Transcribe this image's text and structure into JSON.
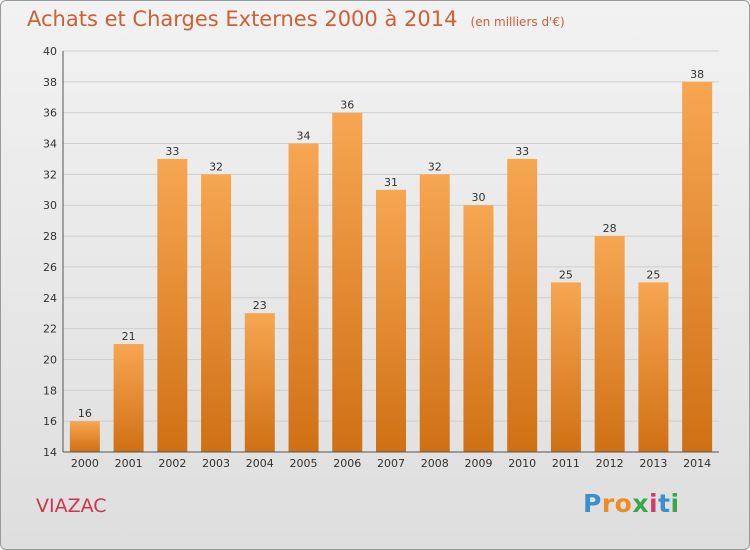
{
  "header": {
    "title": "Achats et Charges Externes 2000 à 2014",
    "unit": "(en milliers d'€)"
  },
  "commune": "VIAZAC",
  "logo": {
    "letters": [
      "P",
      "r",
      "o",
      "x",
      "i",
      "t",
      "i"
    ],
    "colors": [
      "#3a8fd0",
      "#f08a24",
      "#f08a24",
      "#3aa64a",
      "#d23a6a",
      "#3a8fd0",
      "#3aa64a"
    ]
  },
  "colors": {
    "bar_top": "#f7a652",
    "bar_bottom": "#d07014",
    "grid": "#cfcfcf",
    "axis": "#555555",
    "text": "#333333"
  },
  "chart_data": {
    "type": "bar",
    "title": "Achats et Charges Externes 2000 à 2014",
    "subtitle": "(en milliers d'€)",
    "xlabel": "",
    "ylabel": "",
    "categories": [
      "2000",
      "2001",
      "2002",
      "2003",
      "2004",
      "2005",
      "2006",
      "2007",
      "2008",
      "2009",
      "2010",
      "2011",
      "2012",
      "2013",
      "2014"
    ],
    "values": [
      16,
      21,
      33,
      32,
      23,
      34,
      36,
      31,
      32,
      30,
      33,
      25,
      28,
      25,
      38
    ],
    "ylim": [
      14,
      40
    ],
    "yticks": [
      "14",
      "16",
      "18",
      "20",
      "22",
      "24",
      "26",
      "28",
      "30",
      "32",
      "34",
      "36",
      "38",
      "40"
    ],
    "grid": true
  }
}
